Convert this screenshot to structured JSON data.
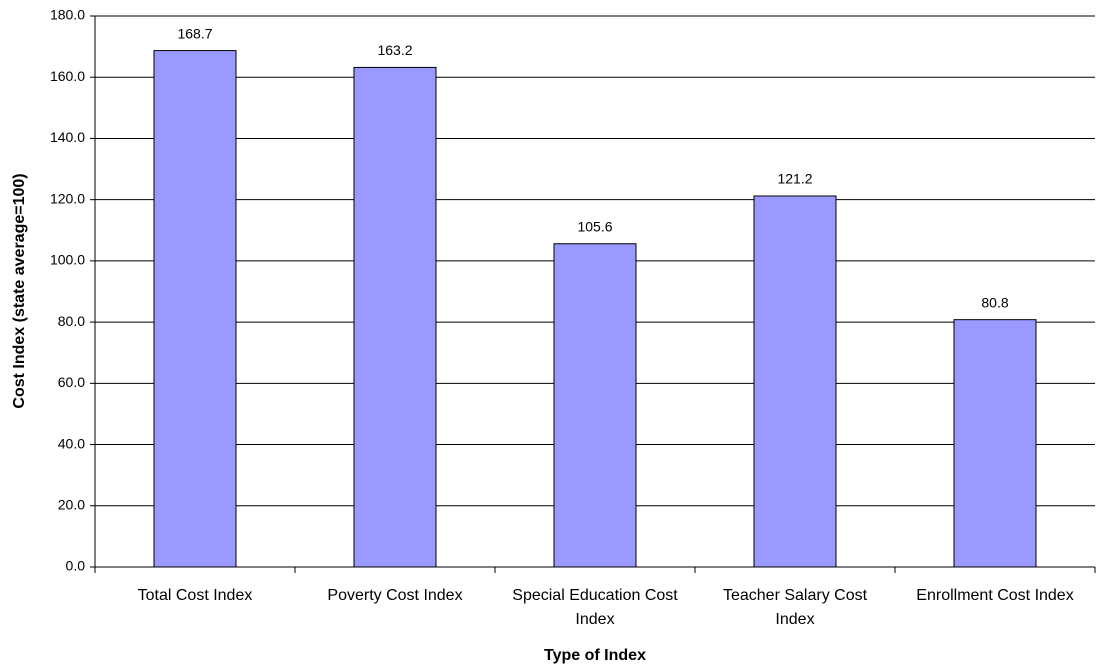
{
  "chart_data": {
    "type": "bar",
    "xlabel": "Type of Index",
    "ylabel": "Cost Index (state average=100)",
    "categories": [
      "Total Cost Index",
      "Poverty Cost Index",
      "Special Education Cost Index",
      "Teacher Salary Cost Index",
      "Enrollment Cost Index"
    ],
    "values": [
      168.7,
      163.2,
      105.6,
      121.2,
      80.8
    ],
    "color": "#9999ff",
    "ylim": [
      0,
      180
    ],
    "yticks": [
      {
        "value": 0,
        "label": "0.0"
      },
      {
        "value": 20,
        "label": "20.0"
      },
      {
        "value": 40,
        "label": "40.0"
      },
      {
        "value": 60,
        "label": "60.0"
      },
      {
        "value": 80,
        "label": "80.0"
      },
      {
        "value": 100,
        "label": "100.0"
      },
      {
        "value": 120,
        "label": "120.0"
      },
      {
        "value": 140,
        "label": "140.0"
      },
      {
        "value": 160,
        "label": "160.0"
      },
      {
        "value": 180,
        "label": "180.0"
      }
    ],
    "grid": true
  }
}
